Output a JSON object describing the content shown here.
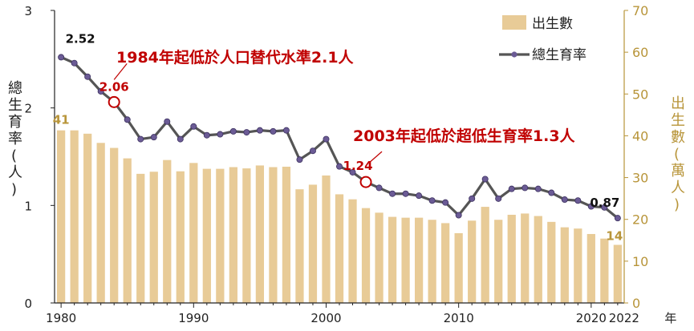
{
  "chart_data": {
    "type": "bar+line",
    "x_unit_label": "年",
    "x_end_label": "2022",
    "x_tick_labels": [
      "1980",
      "1990",
      "2000",
      "2010",
      "2020"
    ],
    "y_left": {
      "title": "總生育率(人)",
      "ticks": [
        "0",
        "1",
        "2",
        "3"
      ],
      "lim": [
        0,
        3
      ]
    },
    "y_right": {
      "title": "出生數(萬人)",
      "ticks": [
        "0",
        "10",
        "20",
        "30",
        "40",
        "50",
        "60",
        "70"
      ],
      "lim": [
        0,
        70
      ]
    },
    "legend": {
      "bar_label": "出生數",
      "line_label": "總生育率",
      "placement": "top-right"
    },
    "years": [
      1980,
      1981,
      1982,
      1983,
      1984,
      1985,
      1986,
      1987,
      1988,
      1989,
      1990,
      1991,
      1992,
      1993,
      1994,
      1995,
      1996,
      1997,
      1998,
      1999,
      2000,
      2001,
      2002,
      2003,
      2004,
      2005,
      2006,
      2007,
      2008,
      2009,
      2010,
      2011,
      2012,
      2013,
      2014,
      2015,
      2016,
      2017,
      2018,
      2019,
      2020,
      2021,
      2022
    ],
    "series": [
      {
        "name": "出生數",
        "kind": "bar",
        "axis": "right",
        "color": "#e8cb97",
        "values": [
          41.3,
          41.3,
          40.5,
          38.3,
          37.1,
          34.6,
          30.9,
          31.4,
          34.2,
          31.5,
          33.5,
          32.1,
          32.1,
          32.5,
          32.2,
          32.9,
          32.5,
          32.6,
          27.2,
          28.3,
          30.5,
          26.0,
          24.8,
          22.7,
          21.6,
          20.6,
          20.4,
          20.4,
          19.9,
          19.1,
          16.7,
          19.7,
          23.0,
          19.9,
          21.1,
          21.4,
          20.8,
          19.4,
          18.1,
          17.8,
          16.5,
          15.4,
          13.9
        ]
      },
      {
        "name": "總生育率",
        "kind": "line",
        "axis": "left",
        "color": "#555555",
        "marker_color": "#6b5b95",
        "values": [
          2.52,
          2.46,
          2.32,
          2.17,
          2.06,
          1.88,
          1.68,
          1.7,
          1.86,
          1.68,
          1.81,
          1.72,
          1.73,
          1.76,
          1.75,
          1.77,
          1.76,
          1.77,
          1.47,
          1.56,
          1.68,
          1.4,
          1.34,
          1.24,
          1.18,
          1.12,
          1.12,
          1.1,
          1.05,
          1.03,
          0.9,
          1.07,
          1.27,
          1.07,
          1.17,
          1.18,
          1.17,
          1.13,
          1.06,
          1.05,
          0.99,
          0.98,
          0.87
        ]
      }
    ],
    "data_labels": [
      {
        "year": 1980,
        "text": "2.52",
        "color": "#111111"
      },
      {
        "year": 1984,
        "text": "2.06",
        "color": "#c00000"
      },
      {
        "year": 2003,
        "text": "1.24",
        "color": "#c00000"
      },
      {
        "year": 2022,
        "text": "0.87",
        "color": "#111111"
      },
      {
        "year": 1980,
        "text": "41",
        "color": "#b8953a",
        "series": "出生數"
      },
      {
        "year": 2022,
        "text": "14",
        "color": "#b8953a",
        "series": "出生數"
      }
    ],
    "annotations": [
      {
        "year": 1984,
        "text": "1984年起低於人口替代水準2.1人"
      },
      {
        "year": 2003,
        "text": "2003年起低於超低生育率1.3人"
      }
    ],
    "highlight_points": [
      1984,
      2003
    ],
    "grid": false
  }
}
